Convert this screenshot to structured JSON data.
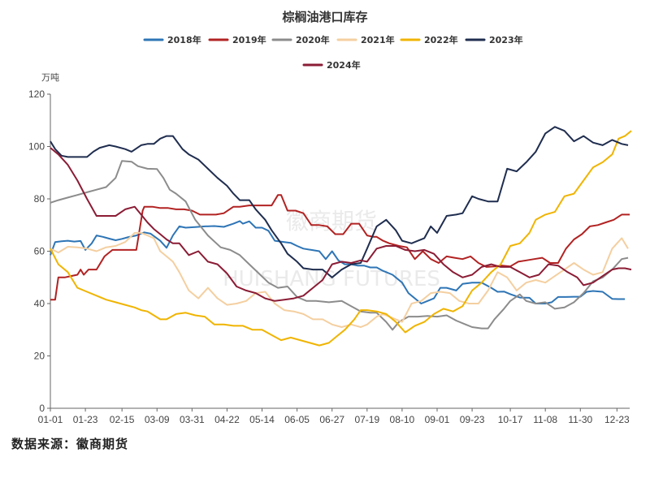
{
  "page": {
    "source": "数据来源：徽商期货"
  },
  "chart_data": {
    "type": "line",
    "title": "棕榈油港口库存",
    "ylabel": "万吨",
    "ylim": [
      0,
      120
    ],
    "yticks": [
      0,
      20,
      40,
      60,
      80,
      100,
      120
    ],
    "xlim": [
      1,
      365
    ],
    "xticks": [
      {
        "label": "01-01",
        "day": 1
      },
      {
        "label": "01-23",
        "day": 23
      },
      {
        "label": "02-15",
        "day": 46
      },
      {
        "label": "03-09",
        "day": 68
      },
      {
        "label": "03-31",
        "day": 90
      },
      {
        "label": "04-22",
        "day": 112
      },
      {
        "label": "05-14",
        "day": 134
      },
      {
        "label": "06-05",
        "day": 156
      },
      {
        "label": "06-27",
        "day": 178
      },
      {
        "label": "07-19",
        "day": 200
      },
      {
        "label": "08-10",
        "day": 222
      },
      {
        "label": "09-01",
        "day": 244
      },
      {
        "label": "09-23",
        "day": 266
      },
      {
        "label": "10-17",
        "day": 290
      },
      {
        "label": "11-08",
        "day": 312
      },
      {
        "label": "11-30",
        "day": 334
      },
      {
        "label": "12-23",
        "day": 357
      }
    ],
    "grid": false,
    "legend_position": "top",
    "watermark": {
      "cn": "徽商期货",
      "en": "HUISHANG FUTURES"
    },
    "series": [
      {
        "name": "2018年",
        "color": "#2e75b6",
        "x": [
          1,
          4,
          8,
          12,
          16,
          20,
          23,
          27,
          30,
          34,
          38,
          42,
          46,
          50,
          55,
          60,
          64,
          70,
          74,
          78,
          82,
          86,
          92,
          98,
          104,
          110,
          116,
          120,
          122,
          126,
          130,
          134,
          138,
          142,
          148,
          152,
          156,
          160,
          165,
          170,
          174,
          178,
          182,
          186,
          190,
          194,
          198,
          202,
          206,
          210,
          216,
          222,
          226,
          230,
          234,
          238,
          242,
          246,
          250,
          256,
          260,
          266,
          272,
          278,
          282,
          286,
          290,
          296,
          302,
          306,
          312,
          316,
          320,
          325,
          330,
          334,
          338,
          342,
          348,
          354,
          358,
          362
        ],
        "y": [
          58.5,
          63.5,
          63.8,
          64,
          63.7,
          63.9,
          60.5,
          63,
          66,
          65.5,
          64.8,
          64.2,
          64.7,
          65.4,
          66,
          67.2,
          66.7,
          64,
          61.3,
          66,
          69.5,
          69,
          69.2,
          69.5,
          69.6,
          69.3,
          70.5,
          71.5,
          70.5,
          71.4,
          69,
          69,
          67.8,
          64,
          63.5,
          63.2,
          62,
          61,
          60.5,
          60,
          57,
          60,
          56.5,
          55,
          55,
          54.5,
          54.5,
          53.8,
          53.8,
          52.5,
          51,
          48,
          44,
          42,
          40,
          41,
          42,
          46,
          46,
          45,
          47.5,
          48,
          48,
          46,
          44.5,
          44.6,
          43.6,
          42.3,
          42.2,
          40,
          40,
          40.5,
          42.5,
          42.5,
          42.6,
          42.6,
          44.5,
          44.8,
          44.5,
          41.8,
          41.7,
          41.7
        ]
      },
      {
        "name": "2019年",
        "color": "#b22222",
        "x": [
          1,
          4,
          6,
          10,
          14,
          18,
          20,
          22,
          25,
          30,
          35,
          40,
          45,
          50,
          55,
          59,
          60,
          65,
          70,
          75,
          80,
          85,
          90,
          95,
          100,
          105,
          110,
          116,
          120,
          126,
          130,
          135,
          140,
          144,
          146,
          150,
          155,
          160,
          165,
          170,
          175,
          180,
          185,
          190,
          195,
          200,
          204,
          206,
          210,
          214,
          220,
          225,
          230,
          235,
          240,
          245,
          250,
          255,
          260,
          265,
          270,
          275,
          280,
          285,
          290,
          295,
          300,
          305,
          310,
          315,
          320,
          325,
          330,
          335,
          340,
          345,
          350,
          355,
          360,
          365
        ],
        "y": [
          41.5,
          41.5,
          50,
          50,
          50.5,
          51,
          53,
          51,
          53,
          53,
          58,
          60.5,
          60.5,
          60.5,
          60.5,
          75.5,
          77,
          77,
          76.5,
          76.5,
          76,
          76,
          75.5,
          74,
          74,
          74,
          74.5,
          77,
          77,
          77.5,
          77.5,
          77.5,
          77.5,
          81.5,
          81.5,
          75.5,
          75.5,
          74.5,
          70,
          70,
          69.5,
          66.5,
          66.5,
          70.5,
          70.5,
          66,
          65.5,
          65.5,
          64,
          63,
          62,
          61.5,
          57,
          60,
          57,
          55.5,
          58,
          57.5,
          57,
          58,
          55.5,
          54,
          54.2,
          54.5,
          54.2,
          56,
          56.5,
          57,
          57.5,
          55.5,
          55.5,
          61,
          64.5,
          66.5,
          69.5,
          70,
          71,
          72,
          74,
          74
        ]
      },
      {
        "name": "2020年",
        "color": "#8c8c8c",
        "x": [
          1,
          6,
          12,
          18,
          24,
          30,
          36,
          42,
          46,
          52,
          56,
          62,
          68,
          72,
          76,
          80,
          86,
          92,
          100,
          108,
          114,
          120,
          126,
          132,
          138,
          144,
          150,
          156,
          162,
          168,
          176,
          184,
          190,
          196,
          202,
          206,
          212,
          216,
          220,
          226,
          232,
          238,
          244,
          250,
          256,
          262,
          266,
          272,
          276,
          280,
          286,
          290,
          296,
          300,
          306,
          312,
          318,
          324,
          330,
          336,
          342,
          348,
          354,
          360,
          364
        ],
        "y": [
          78.5,
          79.5,
          80.5,
          81.5,
          82.5,
          83.5,
          84.5,
          88,
          94.5,
          94.2,
          92.5,
          91.5,
          91.4,
          88,
          83.5,
          82,
          79,
          72,
          66,
          61.5,
          60.5,
          58.5,
          55,
          51.5,
          48,
          46,
          46.5,
          42.5,
          41,
          41,
          40.5,
          41,
          39,
          37,
          36.5,
          36.5,
          33,
          30,
          33,
          35,
          35,
          35.3,
          35,
          35.5,
          33.5,
          32,
          31,
          30.5,
          30.5,
          34,
          38,
          41,
          43.5,
          41,
          40,
          40.5,
          38,
          38.5,
          40.5,
          44,
          48.5,
          50,
          53,
          57,
          57.5
        ]
      },
      {
        "name": "2021年",
        "color": "#f4cfa0",
        "x": [
          1,
          6,
          12,
          18,
          24,
          30,
          36,
          42,
          48,
          54,
          58,
          62,
          66,
          70,
          74,
          78,
          82,
          88,
          94,
          100,
          106,
          112,
          118,
          124,
          130,
          136,
          142,
          148,
          154,
          160,
          166,
          172,
          178,
          184,
          190,
          196,
          200,
          206,
          210,
          214,
          218,
          222,
          228,
          234,
          240,
          246,
          252,
          258,
          264,
          270,
          276,
          282,
          288,
          294,
          300,
          306,
          312,
          318,
          324,
          330,
          336,
          342,
          348,
          354,
          360,
          364
        ],
        "y": [
          61,
          59.5,
          61.7,
          61.5,
          61,
          60,
          61.5,
          62,
          63.5,
          67,
          67,
          66,
          65,
          60,
          58,
          56,
          52,
          45,
          42,
          46,
          42,
          39.5,
          40,
          41,
          44,
          44.5,
          40,
          37.5,
          37,
          36,
          34,
          34,
          32,
          31,
          32,
          31,
          32,
          35,
          36,
          35,
          34,
          33,
          40,
          41,
          44,
          44.5,
          44,
          41,
          40,
          40,
          45,
          52,
          50,
          45,
          48,
          49,
          48,
          50.5,
          53,
          55.5,
          53,
          51,
          52,
          61,
          65,
          61
        ]
      },
      {
        "name": "2022年",
        "color": "#f0b400",
        "x": [
          1,
          6,
          12,
          18,
          24,
          30,
          36,
          42,
          48,
          54,
          58,
          62,
          66,
          70,
          74,
          80,
          86,
          92,
          98,
          104,
          110,
          116,
          122,
          128,
          134,
          140,
          146,
          152,
          158,
          164,
          170,
          176,
          180,
          186,
          192,
          196,
          200,
          206,
          212,
          218,
          224,
          230,
          236,
          242,
          248,
          254,
          260,
          266,
          272,
          278,
          284,
          290,
          296,
          302,
          306,
          312,
          318,
          324,
          330,
          336,
          342,
          348,
          354,
          358,
          362,
          366
        ],
        "y": [
          61,
          55,
          52,
          46,
          44.5,
          43,
          41.5,
          40.5,
          39.5,
          38.5,
          37.5,
          37,
          35.5,
          34,
          34,
          36,
          36.5,
          35.5,
          35,
          32,
          32,
          31.5,
          31.5,
          30,
          30,
          28,
          26,
          27,
          26,
          25,
          24,
          25,
          27,
          30,
          34,
          37.5,
          37.5,
          37,
          36,
          33,
          29,
          31.5,
          33,
          36,
          38,
          37,
          39,
          45,
          48,
          52,
          55,
          62,
          63,
          67,
          72,
          74,
          75,
          81,
          82,
          87,
          92,
          94,
          97,
          103,
          104,
          106
        ]
      },
      {
        "name": "2023年",
        "color": "#1f2d4f",
        "x": [
          1,
          4,
          8,
          12,
          16,
          20,
          24,
          28,
          32,
          38,
          42,
          48,
          52,
          58,
          62,
          66,
          70,
          74,
          78,
          84,
          88,
          94,
          100,
          106,
          112,
          116,
          120,
          126,
          130,
          136,
          140,
          146,
          150,
          156,
          160,
          166,
          172,
          178,
          184,
          190,
          196,
          200,
          206,
          212,
          218,
          222,
          228,
          232,
          236,
          240,
          244,
          250,
          256,
          260,
          266,
          270,
          276,
          282,
          288,
          294,
          300,
          306,
          312,
          318,
          324,
          330,
          336,
          342,
          348,
          354,
          360,
          364
        ],
        "y": [
          102,
          99,
          96.5,
          96,
          96,
          96,
          96,
          98,
          99.5,
          100.5,
          100,
          99,
          98,
          100.5,
          101,
          101,
          103,
          104,
          104,
          99,
          97,
          95,
          91.5,
          88,
          85,
          82,
          79.5,
          79.5,
          76,
          72,
          68,
          63,
          59,
          56,
          53.5,
          53,
          53,
          50,
          53,
          55,
          55.5,
          61,
          69.5,
          72,
          68,
          64,
          63,
          64,
          65,
          69.5,
          67,
          73.5,
          74,
          74.5,
          81,
          80,
          79,
          79,
          91.5,
          90.5,
          94,
          98,
          105,
          107.5,
          106,
          102,
          104,
          101.5,
          100.5,
          102.5,
          101,
          100.5
        ]
      },
      {
        "name": "2024年",
        "color": "#8b1c35",
        "x": [
          1,
          6,
          12,
          18,
          24,
          30,
          36,
          42,
          48,
          54,
          58,
          62,
          66,
          70,
          74,
          78,
          82,
          88,
          94,
          100,
          106,
          112,
          118,
          124,
          130,
          136,
          142,
          148,
          154,
          160,
          166,
          172,
          178,
          184,
          190,
          196,
          200,
          206,
          212,
          218,
          224,
          230,
          236,
          242,
          248,
          254,
          260,
          266,
          272,
          278,
          284,
          290,
          296,
          302,
          308,
          314,
          320,
          326,
          332,
          336,
          342,
          348,
          354,
          358,
          362,
          366
        ],
        "y": [
          99.5,
          97,
          93,
          87,
          80,
          73.5,
          73.5,
          73.5,
          76,
          77,
          74,
          71,
          68.5,
          66.5,
          64.5,
          63,
          63,
          58.5,
          60,
          56,
          55,
          51.5,
          46.5,
          45,
          44,
          42,
          41,
          41.5,
          42,
          43,
          46,
          49,
          55,
          56,
          55.5,
          56.5,
          56,
          61,
          62,
          62,
          60.5,
          60,
          60.5,
          59,
          55,
          52,
          50,
          51,
          54,
          55,
          54,
          54,
          52,
          50,
          51,
          55,
          54.5,
          52,
          50,
          47,
          48,
          50.5,
          53,
          53.5,
          53.5,
          53
        ]
      }
    ]
  }
}
